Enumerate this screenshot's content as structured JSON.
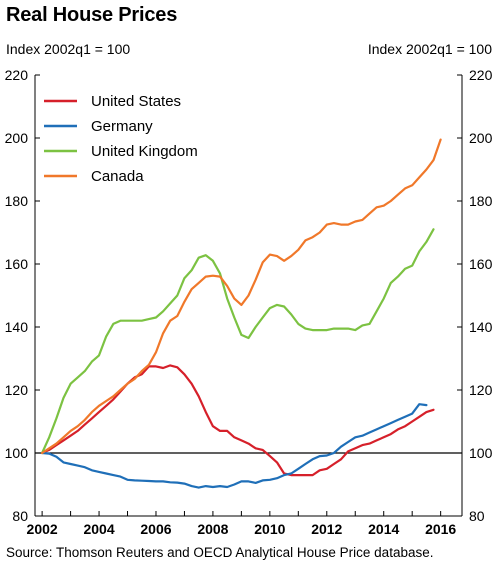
{
  "title": "Real House Prices",
  "unit_left": "Index 2002q1 = 100",
  "unit_right": "Index 2002q1 = 100",
  "source": "Source: Thomson Reuters and OECD Analytical House Price database.",
  "chart_data": {
    "type": "line",
    "title": "Real House Prices",
    "ylabel": "Index 2002q1 = 100",
    "xlim": [
      2001.75,
      2016.75
    ],
    "ylim": [
      80,
      220
    ],
    "yticks": [
      80,
      100,
      120,
      140,
      160,
      180,
      200,
      220
    ],
    "xticks": [
      "2002",
      "2004",
      "2006",
      "2008",
      "2010",
      "2012",
      "2014",
      "2016"
    ],
    "reference_line": 100,
    "legend_position": "top-left",
    "grid": false,
    "series": [
      {
        "name": "United States",
        "color": "#d6202a",
        "points": [
          [
            2002.0,
            100
          ],
          [
            2002.25,
            101
          ],
          [
            2002.5,
            102.5
          ],
          [
            2002.75,
            104
          ],
          [
            2003.0,
            105.5
          ],
          [
            2003.25,
            107
          ],
          [
            2003.5,
            109
          ],
          [
            2003.75,
            111
          ],
          [
            2004.0,
            113
          ],
          [
            2004.25,
            115
          ],
          [
            2004.5,
            117
          ],
          [
            2004.75,
            119.5
          ],
          [
            2005.0,
            122
          ],
          [
            2005.25,
            124
          ],
          [
            2005.5,
            125
          ],
          [
            2005.75,
            127.5
          ],
          [
            2006.0,
            127.5
          ],
          [
            2006.25,
            127
          ],
          [
            2006.5,
            127.8
          ],
          [
            2006.75,
            127.2
          ],
          [
            2007.0,
            125
          ],
          [
            2007.25,
            122
          ],
          [
            2007.5,
            118
          ],
          [
            2007.75,
            113
          ],
          [
            2008.0,
            108.5
          ],
          [
            2008.25,
            107
          ],
          [
            2008.5,
            107
          ],
          [
            2008.75,
            105
          ],
          [
            2009.0,
            104
          ],
          [
            2009.25,
            103
          ],
          [
            2009.5,
            101.5
          ],
          [
            2009.75,
            101
          ],
          [
            2010.0,
            99
          ],
          [
            2010.25,
            97
          ],
          [
            2010.5,
            93.5
          ],
          [
            2010.75,
            93
          ],
          [
            2011.0,
            93
          ],
          [
            2011.25,
            93
          ],
          [
            2011.5,
            93
          ],
          [
            2011.75,
            94.5
          ],
          [
            2012.0,
            95
          ],
          [
            2012.25,
            96.5
          ],
          [
            2012.5,
            98
          ],
          [
            2012.75,
            100.5
          ],
          [
            2013.0,
            101.5
          ],
          [
            2013.25,
            102.5
          ],
          [
            2013.5,
            103
          ],
          [
            2013.75,
            104
          ],
          [
            2014.0,
            105
          ],
          [
            2014.25,
            106
          ],
          [
            2014.5,
            107.5
          ],
          [
            2014.75,
            108.5
          ],
          [
            2015.0,
            110
          ],
          [
            2015.25,
            111.5
          ],
          [
            2015.5,
            113
          ],
          [
            2015.75,
            113.7
          ]
        ]
      },
      {
        "name": "Germany",
        "color": "#1f6fb8",
        "points": [
          [
            2002.0,
            100
          ],
          [
            2002.25,
            99.8
          ],
          [
            2002.5,
            98.8
          ],
          [
            2002.75,
            97
          ],
          [
            2003.0,
            96.5
          ],
          [
            2003.25,
            96
          ],
          [
            2003.5,
            95.5
          ],
          [
            2003.75,
            94.5
          ],
          [
            2004.0,
            94
          ],
          [
            2004.25,
            93.5
          ],
          [
            2004.5,
            93
          ],
          [
            2004.75,
            92.5
          ],
          [
            2005.0,
            91.5
          ],
          [
            2005.25,
            91.3
          ],
          [
            2005.5,
            91.2
          ],
          [
            2005.75,
            91.1
          ],
          [
            2006.0,
            91
          ],
          [
            2006.25,
            91
          ],
          [
            2006.5,
            90.7
          ],
          [
            2006.75,
            90.6
          ],
          [
            2007.0,
            90.3
          ],
          [
            2007.25,
            89.5
          ],
          [
            2007.5,
            89
          ],
          [
            2007.75,
            89.5
          ],
          [
            2008.0,
            89.2
          ],
          [
            2008.25,
            89.5
          ],
          [
            2008.5,
            89.2
          ],
          [
            2008.75,
            90
          ],
          [
            2009.0,
            91
          ],
          [
            2009.25,
            91
          ],
          [
            2009.5,
            90.5
          ],
          [
            2009.75,
            91.3
          ],
          [
            2010.0,
            91.5
          ],
          [
            2010.25,
            92
          ],
          [
            2010.5,
            93
          ],
          [
            2010.75,
            93.5
          ],
          [
            2011.0,
            95
          ],
          [
            2011.25,
            96.5
          ],
          [
            2011.5,
            98
          ],
          [
            2011.75,
            99
          ],
          [
            2012.0,
            99.2
          ],
          [
            2012.25,
            100
          ],
          [
            2012.5,
            102
          ],
          [
            2012.75,
            103.5
          ],
          [
            2013.0,
            105
          ],
          [
            2013.25,
            105.5
          ],
          [
            2013.5,
            106.5
          ],
          [
            2013.75,
            107.5
          ],
          [
            2014.0,
            108.5
          ],
          [
            2014.25,
            109.5
          ],
          [
            2014.5,
            110.5
          ],
          [
            2014.75,
            111.5
          ],
          [
            2015.0,
            112.5
          ],
          [
            2015.25,
            115.5
          ],
          [
            2015.5,
            115.2
          ]
        ]
      },
      {
        "name": "United Kingdom",
        "color": "#7cc242",
        "points": [
          [
            2002.0,
            100
          ],
          [
            2002.25,
            105
          ],
          [
            2002.5,
            111
          ],
          [
            2002.75,
            117.5
          ],
          [
            2003.0,
            122
          ],
          [
            2003.25,
            124
          ],
          [
            2003.5,
            126
          ],
          [
            2003.75,
            129
          ],
          [
            2004.0,
            131
          ],
          [
            2004.25,
            137
          ],
          [
            2004.5,
            141
          ],
          [
            2004.75,
            142
          ],
          [
            2005.0,
            142
          ],
          [
            2005.25,
            142
          ],
          [
            2005.5,
            142
          ],
          [
            2005.75,
            142.5
          ],
          [
            2006.0,
            143
          ],
          [
            2006.25,
            145
          ],
          [
            2006.5,
            147.5
          ],
          [
            2006.75,
            150
          ],
          [
            2007.0,
            155.5
          ],
          [
            2007.25,
            158
          ],
          [
            2007.5,
            162
          ],
          [
            2007.75,
            162.8
          ],
          [
            2008.0,
            161
          ],
          [
            2008.25,
            157
          ],
          [
            2008.5,
            149
          ],
          [
            2008.75,
            143
          ],
          [
            2009.0,
            137.5
          ],
          [
            2009.25,
            136.5
          ],
          [
            2009.5,
            140
          ],
          [
            2009.75,
            143
          ],
          [
            2010.0,
            146
          ],
          [
            2010.25,
            147
          ],
          [
            2010.5,
            146.5
          ],
          [
            2010.75,
            144
          ],
          [
            2011.0,
            141
          ],
          [
            2011.25,
            139.5
          ],
          [
            2011.5,
            139
          ],
          [
            2011.75,
            139
          ],
          [
            2012.0,
            139
          ],
          [
            2012.25,
            139.5
          ],
          [
            2012.5,
            139.5
          ],
          [
            2012.75,
            139.5
          ],
          [
            2013.0,
            139
          ],
          [
            2013.25,
            140.5
          ],
          [
            2013.5,
            141
          ],
          [
            2013.75,
            145
          ],
          [
            2014.0,
            149
          ],
          [
            2014.25,
            154
          ],
          [
            2014.5,
            156
          ],
          [
            2014.75,
            158.5
          ],
          [
            2015.0,
            159.5
          ],
          [
            2015.25,
            164
          ],
          [
            2015.5,
            167
          ],
          [
            2015.75,
            171
          ]
        ]
      },
      {
        "name": "Canada",
        "color": "#f0782a",
        "points": [
          [
            2002.0,
            100
          ],
          [
            2002.25,
            101.5
          ],
          [
            2002.5,
            103
          ],
          [
            2002.75,
            105
          ],
          [
            2003.0,
            107
          ],
          [
            2003.25,
            108.5
          ],
          [
            2003.5,
            110.5
          ],
          [
            2003.75,
            113
          ],
          [
            2004.0,
            115
          ],
          [
            2004.25,
            116.5
          ],
          [
            2004.5,
            118
          ],
          [
            2004.75,
            120
          ],
          [
            2005.0,
            122
          ],
          [
            2005.25,
            123.5
          ],
          [
            2005.5,
            126
          ],
          [
            2005.75,
            128
          ],
          [
            2006.0,
            132
          ],
          [
            2006.25,
            138
          ],
          [
            2006.5,
            142
          ],
          [
            2006.75,
            143.5
          ],
          [
            2007.0,
            148
          ],
          [
            2007.25,
            152
          ],
          [
            2007.5,
            154
          ],
          [
            2007.75,
            156
          ],
          [
            2008.0,
            156.3
          ],
          [
            2008.25,
            156
          ],
          [
            2008.5,
            153
          ],
          [
            2008.75,
            149
          ],
          [
            2009.0,
            147
          ],
          [
            2009.25,
            150
          ],
          [
            2009.5,
            155
          ],
          [
            2009.75,
            160.5
          ],
          [
            2010.0,
            163
          ],
          [
            2010.25,
            162.5
          ],
          [
            2010.5,
            161
          ],
          [
            2010.75,
            162.5
          ],
          [
            2011.0,
            164.5
          ],
          [
            2011.25,
            167.5
          ],
          [
            2011.5,
            168.5
          ],
          [
            2011.75,
            170
          ],
          [
            2012.0,
            172.5
          ],
          [
            2012.25,
            173
          ],
          [
            2012.5,
            172.5
          ],
          [
            2012.75,
            172.5
          ],
          [
            2013.0,
            173.5
          ],
          [
            2013.25,
            174
          ],
          [
            2013.5,
            176
          ],
          [
            2013.75,
            178
          ],
          [
            2014.0,
            178.5
          ],
          [
            2014.25,
            180
          ],
          [
            2014.5,
            182
          ],
          [
            2014.75,
            184
          ],
          [
            2015.0,
            185
          ],
          [
            2015.25,
            187.5
          ],
          [
            2015.5,
            190
          ],
          [
            2015.75,
            193
          ],
          [
            2016.0,
            199.5
          ]
        ]
      }
    ]
  }
}
